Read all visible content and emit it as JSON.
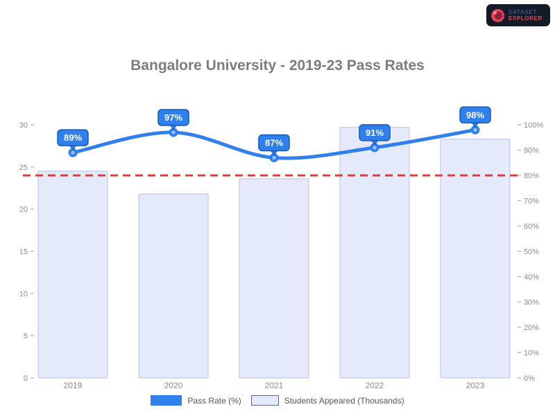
{
  "page": {
    "background": "#ffffff"
  },
  "logo": {
    "line1": "DATASET",
    "line2": "EXPLORER",
    "icon": "red-circle-logo"
  },
  "chart_data": {
    "type": "combo",
    "title": "Bangalore University - 2019-23 Pass Rates",
    "categories": [
      "2019",
      "2020",
      "2021",
      "2022",
      "2023"
    ],
    "series": [
      {
        "name": "Students Appeared (Thousands)",
        "type": "bar",
        "axis": "left",
        "values": [
          24.5,
          21.8,
          23.6,
          29.7,
          28.3
        ],
        "fill": "#e4eafa",
        "border": "#c8d2ec"
      },
      {
        "name": "Pass Rate (%)",
        "type": "line",
        "axis": "right",
        "values": [
          89,
          97,
          87,
          91,
          98
        ],
        "labels": [
          "89%",
          "97%",
          "87%",
          "91%",
          "98%"
        ],
        "color": "#2f80ed"
      }
    ],
    "target_line": {
      "value": 80,
      "axis": "right",
      "style": "dashed",
      "color": "#e53935"
    },
    "left_axis": {
      "min": 0,
      "max": 30,
      "step": 5,
      "ticks_top_to_bottom": [
        "30",
        "25",
        "20",
        "15",
        "10",
        "5",
        "0"
      ]
    },
    "right_axis": {
      "min": 0,
      "max": 100,
      "step": 10,
      "ticks_top_to_bottom": [
        "100%",
        "90%",
        "80%",
        "70%",
        "60%",
        "50%",
        "40%",
        "30%",
        "20%",
        "10%",
        "0%"
      ]
    },
    "grid": false,
    "legend_position": "bottom",
    "legend": [
      {
        "label": "Pass Rate (%)",
        "swatch_color": "#2f80ed"
      },
      {
        "label": "Students Appeared (Thousands)",
        "swatch_color": "#e4eafa"
      }
    ]
  },
  "colors": {
    "title_text": "#7d7d7d",
    "axis_text": "#8c8c8c",
    "tick_mark": "#bdbdbd",
    "bar_fill": "#e4eafa",
    "bar_border": "#c8d2ec",
    "line": "#2f80ed",
    "point_core": "#9cc4f7",
    "callout_fill": "#2f80ed",
    "callout_border": "#155ab8",
    "callout_text": "#ffffff",
    "target": "#e53935",
    "legend_text": "#565656"
  }
}
